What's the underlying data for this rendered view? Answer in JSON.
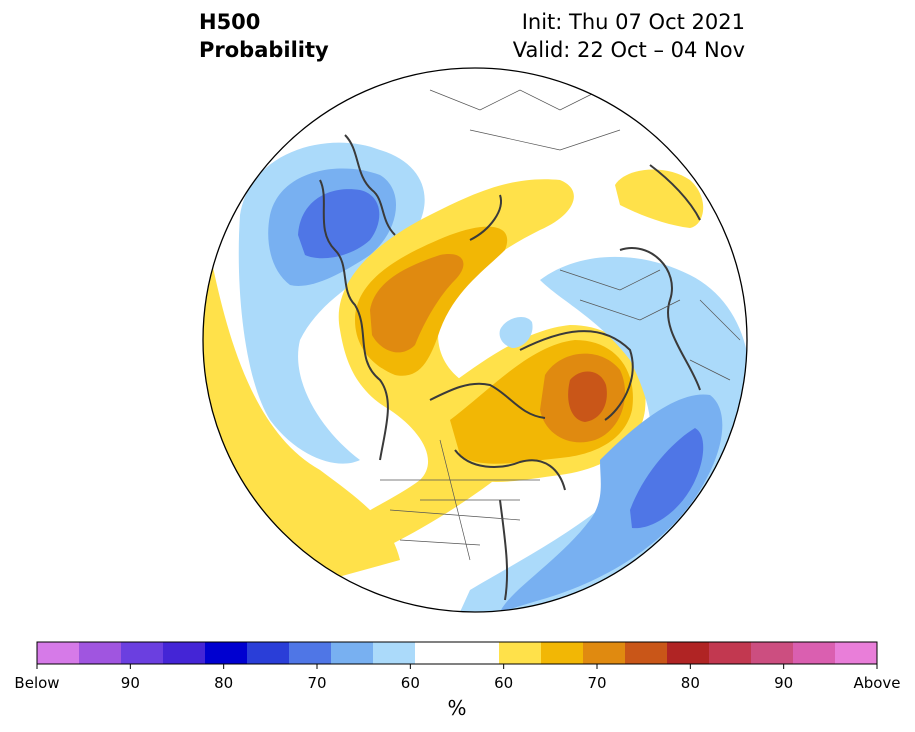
{
  "title": {
    "line1": "H500",
    "line2": "Probability",
    "init": "Init: Thu 07 Oct 2021",
    "valid": "Valid: 22 Oct – 04 Nov"
  },
  "colorbar": {
    "unit": "%",
    "colors": [
      "#d67ae8",
      "#a055e0",
      "#6b3fe0",
      "#4425d6",
      "#0000d0",
      "#2a3ed8",
      "#4f76e6",
      "#78b0f1",
      "#abdafa",
      "#ffffff",
      "#ffffff",
      "#ffe14a",
      "#f2b705",
      "#e08a10",
      "#c95618",
      "#b02424",
      "#c23850",
      "#cc4e80",
      "#da5fb0",
      "#e97ed9"
    ],
    "tick_labels": [
      "Below",
      "90",
      "80",
      "70",
      "60",
      "60",
      "70",
      "80",
      "90",
      "Above"
    ]
  },
  "map_colors": {
    "light_blue": "#abdafa",
    "mid_blue": "#78b0f1",
    "dark_blue": "#4f76e6",
    "yellow": "#ffe14a",
    "gold": "#f2b705",
    "orange": "#e08a10",
    "dark_orange": "#c95618",
    "coast": "#3a3a3a",
    "border": "#555555"
  }
}
